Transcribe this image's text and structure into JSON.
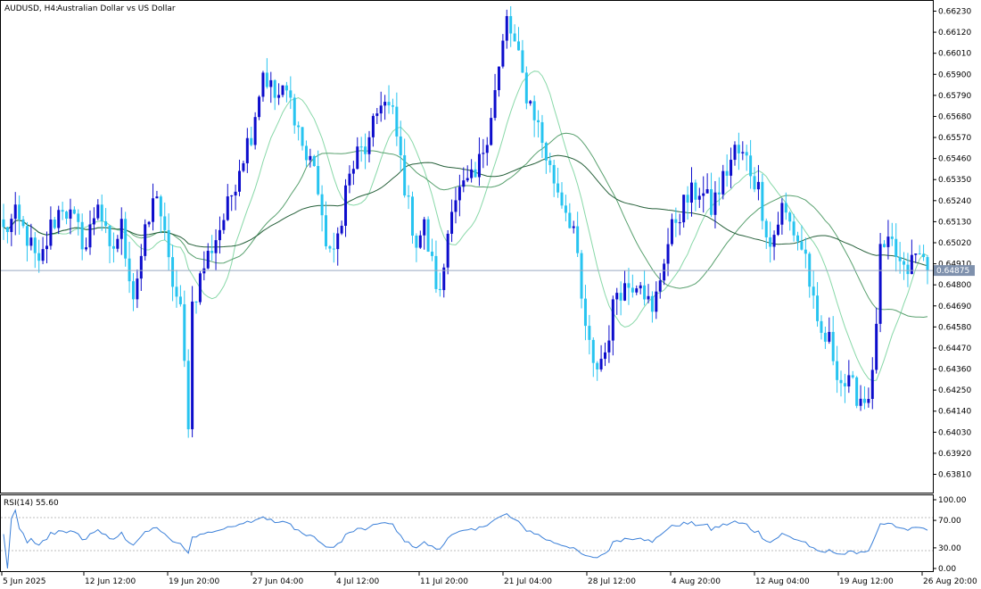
{
  "header": {
    "symbol": "AUDUSD, H4:",
    "description": "Australian Dollar vs US Dollar"
  },
  "price_axis": {
    "ticks": [
      "0.66230",
      "0.66120",
      "0.66010",
      "0.65900",
      "0.65790",
      "0.65680",
      "0.65570",
      "0.65460",
      "0.65350",
      "0.65240",
      "0.65130",
      "0.65020",
      "0.64910",
      "0.64800",
      "0.64690",
      "0.64580",
      "0.64470",
      "0.64360",
      "0.64250",
      "0.64140",
      "0.64030",
      "0.63920",
      "0.63810"
    ],
    "current_price": "0.64875"
  },
  "time_axis": {
    "ticks": [
      "5 Jun 2025",
      "12 Jun 12:00",
      "19 Jun 20:00",
      "27 Jun 04:00",
      "4 Jul 12:00",
      "11 Jul 20:00",
      "21 Jul 04:00",
      "28 Jul 12:00",
      "4 Aug 20:00",
      "12 Aug 04:00",
      "19 Aug 12:00",
      "26 Aug 20:00"
    ]
  },
  "rsi_panel": {
    "label": "RSI(14) 55.60",
    "ticks": [
      "100.00",
      "70.00",
      "30.00",
      "0.00"
    ]
  },
  "colors": {
    "bull": "#0d0dcc",
    "bear": "#27c4f0",
    "ma_fast": "#88d8a8",
    "ma_mid": "#58a06e",
    "ma_slow": "#26603a",
    "rsi": "#3a7fd8",
    "price_line": "#9aa9c2"
  },
  "chart_data": {
    "type": "candlestick",
    "symbol": "AUDUSD",
    "timeframe": "H4",
    "ylim": [
      0.6376,
      0.6628
    ],
    "x_range": [
      "5 Jun 2025",
      "26 Aug 20:00"
    ],
    "current_price": 0.64875,
    "close_path": [
      [
        0,
        0.6508
      ],
      [
        3,
        0.6515
      ],
      [
        6,
        0.6505
      ],
      [
        9,
        0.6488
      ],
      [
        12,
        0.651
      ],
      [
        15,
        0.6522
      ],
      [
        18,
        0.6512
      ],
      [
        21,
        0.65
      ],
      [
        24,
        0.6525
      ],
      [
        27,
        0.6495
      ],
      [
        30,
        0.651
      ],
      [
        33,
        0.6475
      ],
      [
        36,
        0.6505
      ],
      [
        39,
        0.653
      ],
      [
        42,
        0.649
      ],
      [
        45,
        0.6465
      ],
      [
        47,
        0.641
      ],
      [
        48,
        0.647
      ],
      [
        51,
        0.649
      ],
      [
        54,
        0.6505
      ],
      [
        57,
        0.652
      ],
      [
        60,
        0.6543
      ],
      [
        63,
        0.656
      ],
      [
        66,
        0.6592
      ],
      [
        69,
        0.6578
      ],
      [
        72,
        0.658
      ],
      [
        74,
        0.657
      ],
      [
        77,
        0.6545
      ],
      [
        79,
        0.6545
      ],
      [
        81,
        0.651
      ],
      [
        84,
        0.6493
      ],
      [
        87,
        0.653
      ],
      [
        90,
        0.6548
      ],
      [
        93,
        0.6553
      ],
      [
        96,
        0.6578
      ],
      [
        99,
        0.6568
      ],
      [
        101,
        0.6545
      ],
      [
        103,
        0.652
      ],
      [
        105,
        0.6503
      ],
      [
        107,
        0.651
      ],
      [
        109,
        0.649
      ],
      [
        111,
        0.6473
      ],
      [
        114,
        0.6525
      ],
      [
        117,
        0.653
      ],
      [
        120,
        0.6535
      ],
      [
        123,
        0.656
      ],
      [
        126,
        0.6592
      ],
      [
        128,
        0.6618
      ],
      [
        130,
        0.6605
      ],
      [
        133,
        0.658
      ],
      [
        135,
        0.657
      ],
      [
        137,
        0.6555
      ],
      [
        139,
        0.654
      ],
      [
        142,
        0.6525
      ],
      [
        145,
        0.651
      ],
      [
        147,
        0.647
      ],
      [
        150,
        0.6435
      ],
      [
        153,
        0.6445
      ],
      [
        156,
        0.6478
      ],
      [
        159,
        0.648
      ],
      [
        162,
        0.6485
      ],
      [
        165,
        0.6463
      ],
      [
        168,
        0.6495
      ],
      [
        171,
        0.6515
      ],
      [
        174,
        0.6525
      ],
      [
        177,
        0.653
      ],
      [
        180,
        0.652
      ],
      [
        183,
        0.6535
      ],
      [
        186,
        0.655
      ],
      [
        189,
        0.6545
      ],
      [
        192,
        0.653
      ],
      [
        195,
        0.65
      ],
      [
        198,
        0.652
      ],
      [
        201,
        0.6508
      ],
      [
        204,
        0.6495
      ],
      [
        207,
        0.6455
      ],
      [
        210,
        0.645
      ],
      [
        213,
        0.643
      ],
      [
        216,
        0.6425
      ],
      [
        219,
        0.642
      ],
      [
        221,
        0.643
      ],
      [
        223,
        0.6495
      ],
      [
        226,
        0.65
      ],
      [
        229,
        0.6485
      ],
      [
        232,
        0.6495
      ],
      [
        235,
        0.6493
      ]
    ],
    "moving_averages": [
      "fast",
      "mid",
      "slow"
    ],
    "rsi": {
      "period": 14,
      "last": 55.6,
      "ylim": [
        0,
        100
      ],
      "levels": [
        70,
        30
      ]
    }
  }
}
